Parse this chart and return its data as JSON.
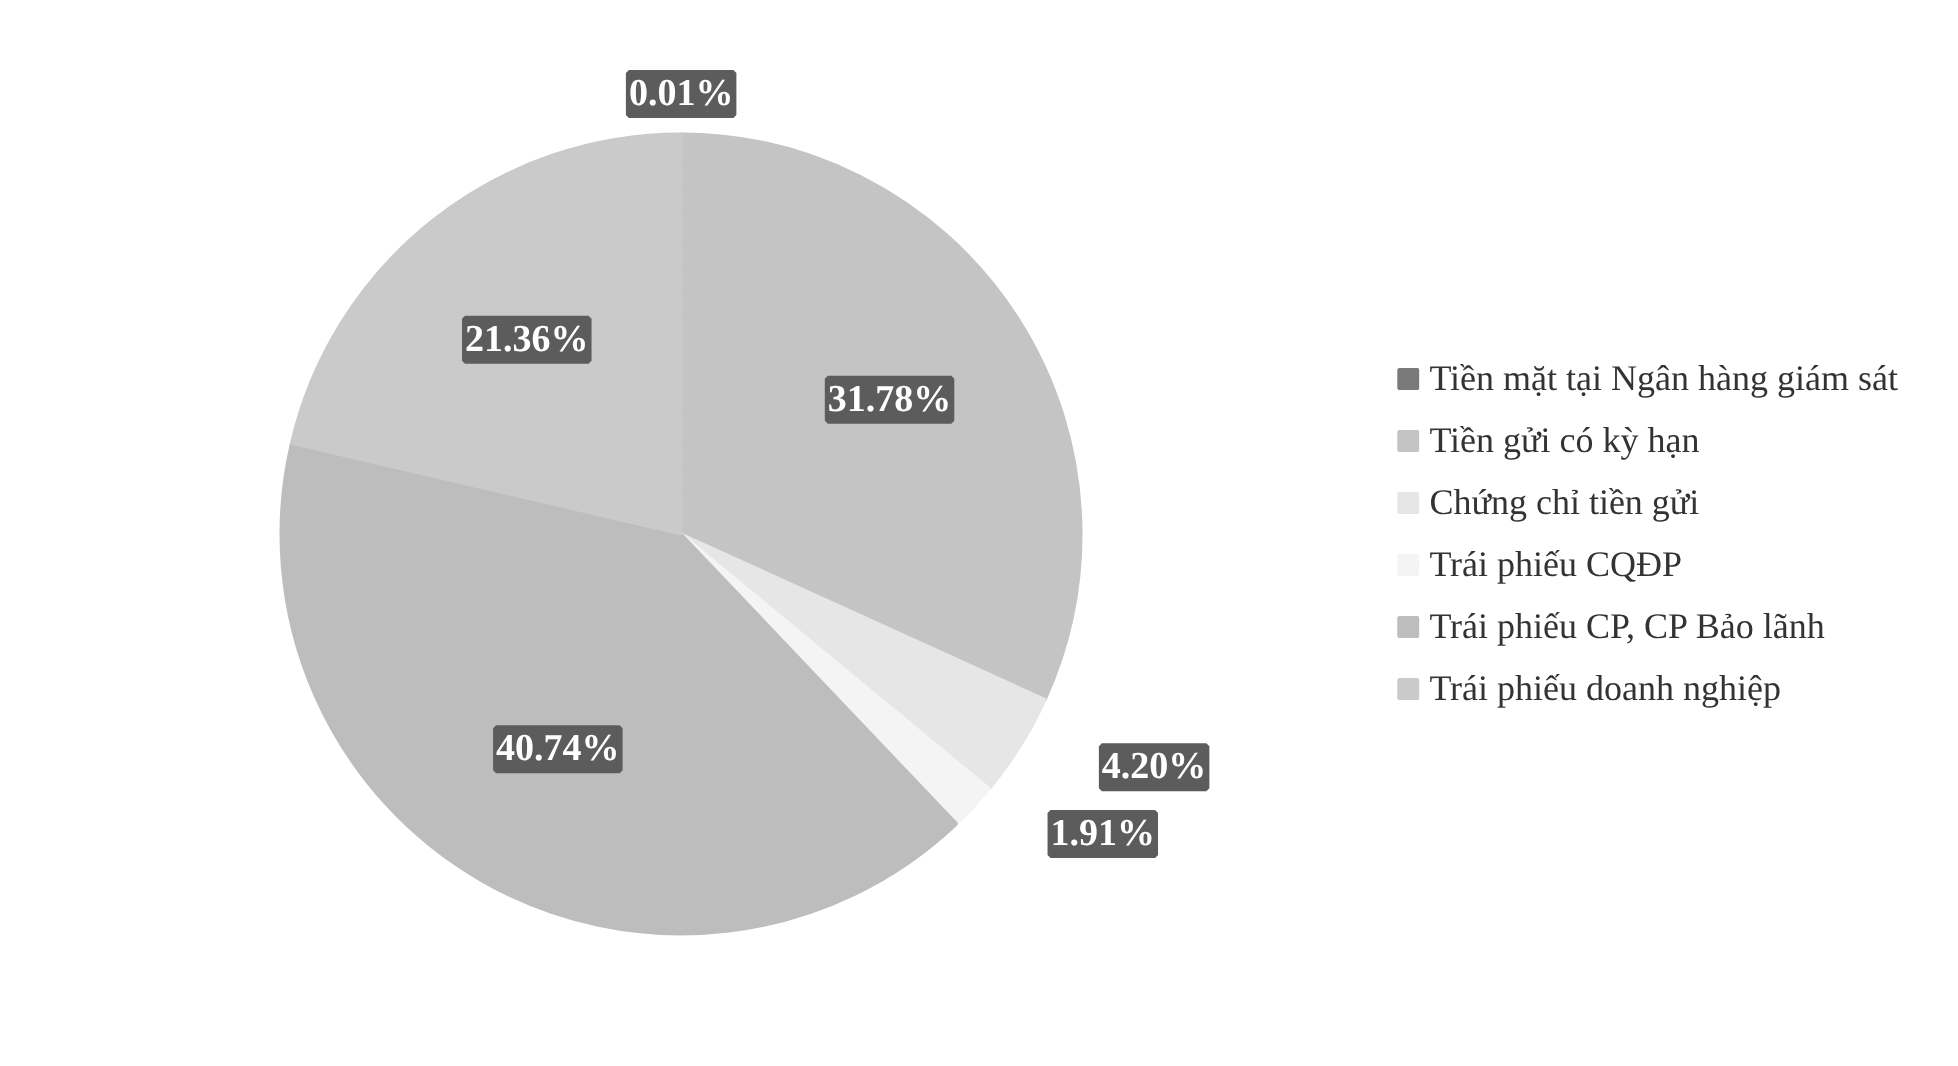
{
  "chart_data": {
    "type": "pie",
    "categories": [
      "Tiền mặt tại Ngân hàng giám sát",
      "Tiền gửi có kỳ hạn",
      "Chứng chỉ tiền gửi",
      "Trái phiếu CQĐP",
      "Trái phiếu CP, CP Bảo lãnh",
      "Trái phiếu doanh nghiệp"
    ],
    "values": [
      0.01,
      31.78,
      4.2,
      1.91,
      40.74,
      21.36
    ],
    "value_labels": [
      "0.01%",
      "31.78%",
      "4.20%",
      "1.91%",
      "40.74%",
      "21.36%"
    ],
    "colors": [
      "#7a7a7a",
      "#c4c4c4",
      "#e6e6e6",
      "#f4f4f4",
      "#bdbdbd",
      "#cacaca"
    ],
    "legend": "right"
  }
}
